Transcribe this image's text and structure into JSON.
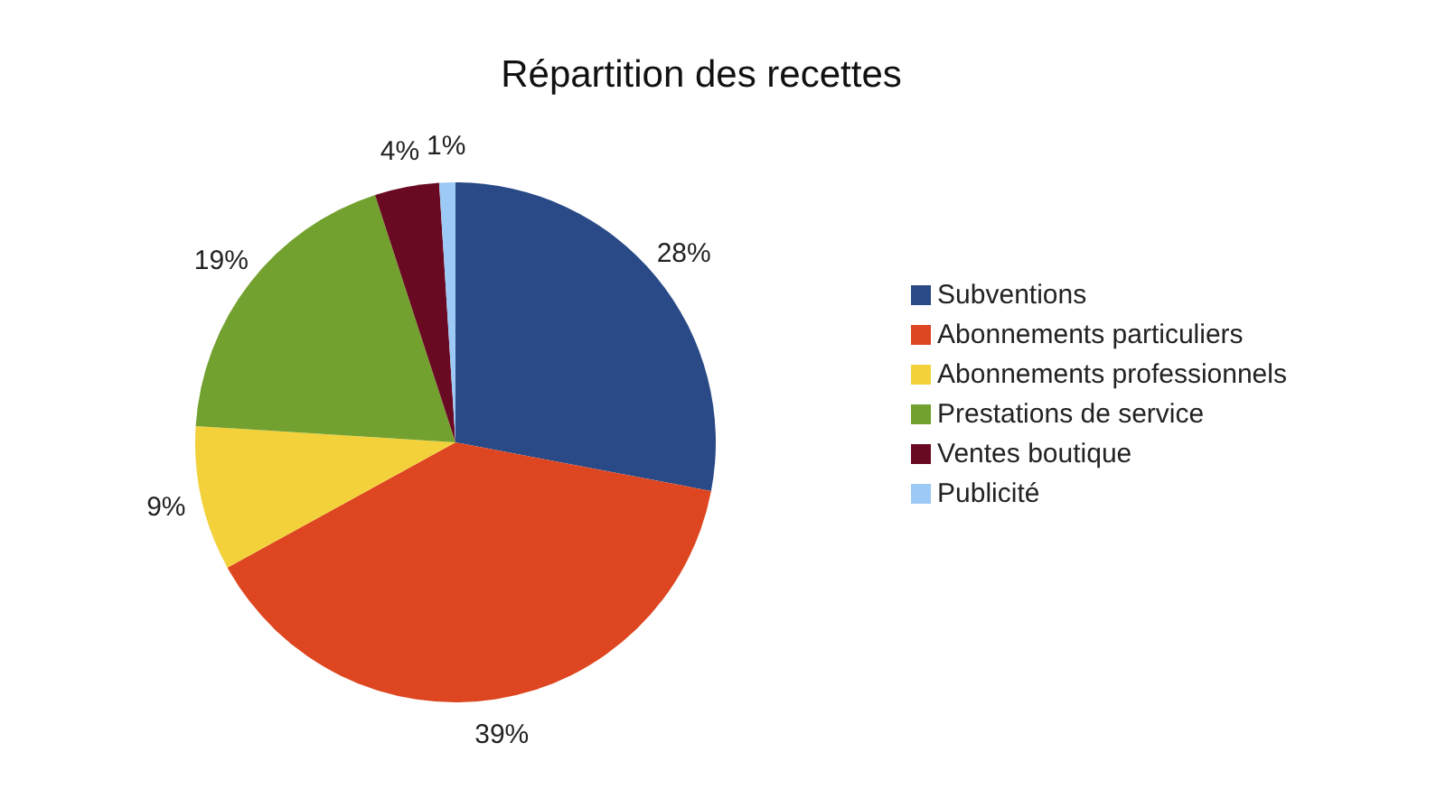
{
  "chart_data": {
    "type": "pie",
    "title": "Répartition des recettes",
    "categories": [
      "Subventions",
      "Abonnements particuliers",
      "Abonnements professionnels",
      "Prestations de service",
      "Ventes boutique",
      "Publicité"
    ],
    "values": [
      28,
      39,
      9,
      19,
      4,
      1
    ],
    "value_labels": [
      "28%",
      "39%",
      "9%",
      "19%",
      "4%",
      "1%"
    ],
    "colors": [
      "#2a4a87",
      "#dd4620",
      "#f2d13b",
      "#73a12f",
      "#6a0a22",
      "#9cc9f5"
    ],
    "legend": "right"
  }
}
